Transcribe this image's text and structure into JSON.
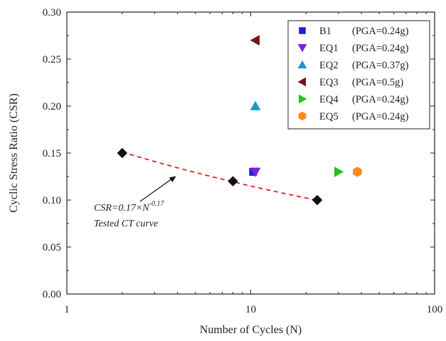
{
  "chart_data": {
    "type": "scatter",
    "xlabel": "Number of Cycles (N)",
    "ylabel": "Cyclic Stress Ratio (CSR)",
    "xscale": "log",
    "xlim": [
      1,
      100
    ],
    "ylim": [
      0.0,
      0.3
    ],
    "x_ticks": [
      "1",
      "10",
      "100"
    ],
    "y_ticks": [
      "0.00",
      "0.05",
      "0.10",
      "0.15",
      "0.20",
      "0.25",
      "0.30"
    ],
    "grid": false,
    "legend_position": "top-right",
    "series": [
      {
        "name": "B1",
        "pga_label": "(PGA=0.24g)",
        "marker": "square",
        "color": "#1f1fd6",
        "points": [
          {
            "x": 10.3,
            "y": 0.13
          }
        ]
      },
      {
        "name": "EQ1",
        "pga_label": "(PGA=0.24g)",
        "marker": "triangle-down",
        "color": "#7a22d6",
        "points": [
          {
            "x": 10.6,
            "y": 0.13
          }
        ]
      },
      {
        "name": "EQ2",
        "pga_label": "(PGA=0.37g)",
        "marker": "triangle-up",
        "color": "#1e9ac9",
        "points": [
          {
            "x": 10.6,
            "y": 0.2
          }
        ]
      },
      {
        "name": "EQ3",
        "pga_label": "(PGA=0.5g)",
        "marker": "triangle-left",
        "color": "#7a1414",
        "points": [
          {
            "x": 10.6,
            "y": 0.27
          }
        ]
      },
      {
        "name": "EQ4",
        "pga_label": "(PGA=0.24g)",
        "marker": "triangle-right",
        "color": "#22c422",
        "points": [
          {
            "x": 30,
            "y": 0.13
          }
        ]
      },
      {
        "name": "EQ5",
        "pga_label": "(PGA=0.24g)",
        "marker": "hexagon",
        "color": "#ff8c1a",
        "points": [
          {
            "x": 38,
            "y": 0.13
          }
        ]
      }
    ],
    "tested_points": {
      "marker": "diamond",
      "color": "#111111",
      "points": [
        {
          "x": 2,
          "y": 0.15
        },
        {
          "x": 8,
          "y": 0.12
        },
        {
          "x": 23,
          "y": 0.1
        }
      ]
    },
    "fit_curve": {
      "color": "#e02020",
      "style": "dashed",
      "coefficient": 0.17,
      "exponent": -0.17,
      "x_range": [
        2,
        23
      ]
    },
    "annotation": {
      "formula_base": "CSR=0.17×N",
      "formula_exponent": "-0.17",
      "caption": "Tested CT curve",
      "arrow_to": {
        "x": 4,
        "y": 0.127
      }
    }
  }
}
